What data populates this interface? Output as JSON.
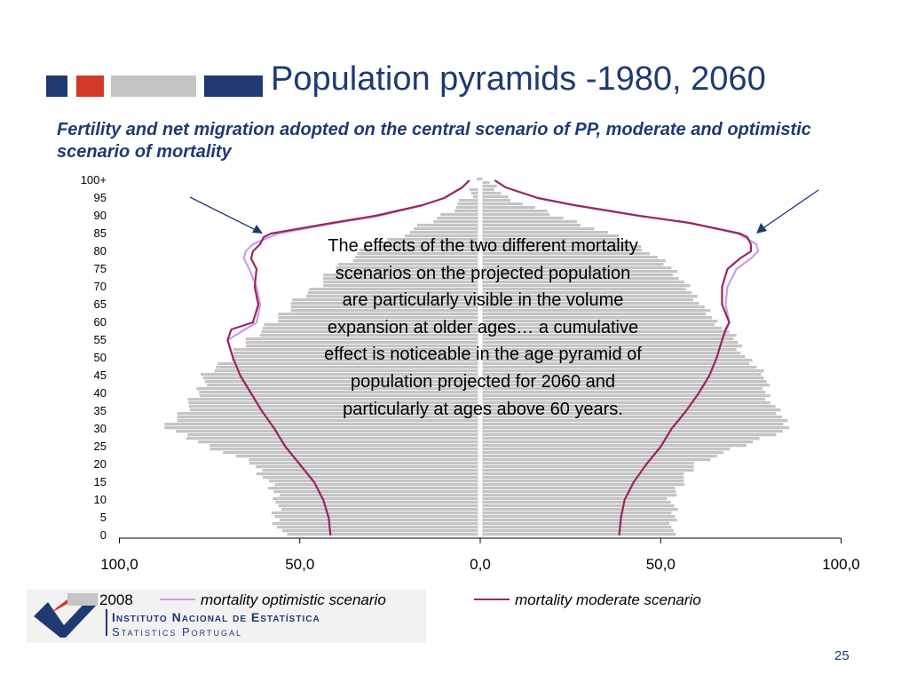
{
  "slide": {
    "title": "Population pyramids -1980, 2060",
    "subtitle": "Fertility and net migration adopted on the central scenario of PP, moderate and optimistic scenario of mortality",
    "annotation": "The effects of the two different mortality scenarios on the projected population are particularly visible in the volume expansion at older ages… a cumulative effect is noticeable in the age pyramid of population projected for 2060 and particularly at ages above 60 years.",
    "page_number": "25",
    "logo_line1": "Instituto Nacional de Estatística",
    "logo_line2": "Statistics Portugal"
  },
  "colors": {
    "title": "#1f3a73",
    "deco_blue": "#1f3a73",
    "deco_red": "#d33a25",
    "deco_gray": "#c4c4c4",
    "bars_2008": "#c4c4c4",
    "optimistic": "#c99bf0",
    "moderate": "#9b2761"
  },
  "chart_data": {
    "type": "bar",
    "orientation": "horizontal-pyramid",
    "x_ticks": [
      "100,0",
      "50,0",
      "0,0",
      "50,0",
      "100,0"
    ],
    "xlim": [
      -100,
      100
    ],
    "y_ticks": [
      "0",
      "5",
      "10",
      "15",
      "20",
      "25",
      "30",
      "35",
      "40",
      "45",
      "50",
      "55",
      "60",
      "65",
      "70",
      "75",
      "80",
      "85",
      "90",
      "95",
      "100+"
    ],
    "ylim": [
      0,
      100
    ],
    "legend": [
      "2008",
      "mortality optimistic scenario",
      "mortality moderate scenario"
    ],
    "legend_position": "bottom",
    "bars_2008": {
      "ages": [
        0,
        5,
        10,
        15,
        20,
        25,
        30,
        35,
        40,
        45,
        50,
        55,
        60,
        65,
        70,
        75,
        80,
        85,
        90,
        95,
        100
      ],
      "left": [
        55,
        57,
        56,
        59,
        63,
        76,
        87,
        82,
        78,
        76,
        69,
        64,
        57,
        52,
        45,
        40,
        32,
        20,
        10,
        3,
        0.5
      ],
      "right": [
        53,
        54,
        53,
        56,
        60,
        73,
        86,
        82,
        79,
        79,
        73,
        71,
        65,
        61,
        57,
        53,
        46,
        35,
        20,
        7,
        1
      ]
    },
    "series": [
      {
        "name": "mortality optimistic scenario",
        "ages": [
          0,
          5,
          10,
          15,
          20,
          25,
          30,
          35,
          40,
          45,
          50,
          55,
          60,
          65,
          70,
          75,
          78,
          80,
          82,
          85,
          88,
          90,
          93,
          95,
          98,
          100
        ],
        "left": [
          41.5,
          42,
          43.5,
          46,
          50,
          54,
          57,
          60.5,
          63.5,
          66.5,
          68.5,
          70,
          62,
          61,
          62,
          64,
          65.5,
          65,
          63,
          56,
          40,
          28,
          16,
          10,
          5,
          3
        ],
        "right": [
          38.5,
          39,
          40,
          42.5,
          46,
          50,
          53,
          57,
          60.5,
          63.5,
          65.5,
          67,
          69,
          68,
          68.5,
          71,
          75,
          77,
          76.5,
          71.5,
          58,
          44,
          26,
          16,
          7,
          4
        ]
      },
      {
        "name": "mortality moderate scenario",
        "ages": [
          0,
          5,
          10,
          15,
          20,
          25,
          30,
          35,
          40,
          45,
          50,
          55,
          58,
          60,
          65,
          70,
          75,
          78,
          80,
          82,
          84,
          85,
          88,
          90,
          93,
          95,
          98,
          100
        ],
        "left": [
          41.5,
          42,
          43.5,
          46,
          50,
          54,
          57,
          60.5,
          63.5,
          66.5,
          68.5,
          70,
          69,
          63,
          61.5,
          62.5,
          62,
          63.5,
          63,
          61,
          60,
          58,
          41,
          29,
          16,
          10,
          5,
          3
        ],
        "right": [
          38.5,
          39,
          40,
          42.5,
          46,
          50,
          53,
          57,
          60.5,
          63.5,
          65.5,
          67,
          68,
          69,
          67,
          67,
          68.5,
          72,
          75,
          75,
          74,
          72,
          58,
          44,
          26,
          16,
          7,
          4
        ]
      }
    ]
  }
}
